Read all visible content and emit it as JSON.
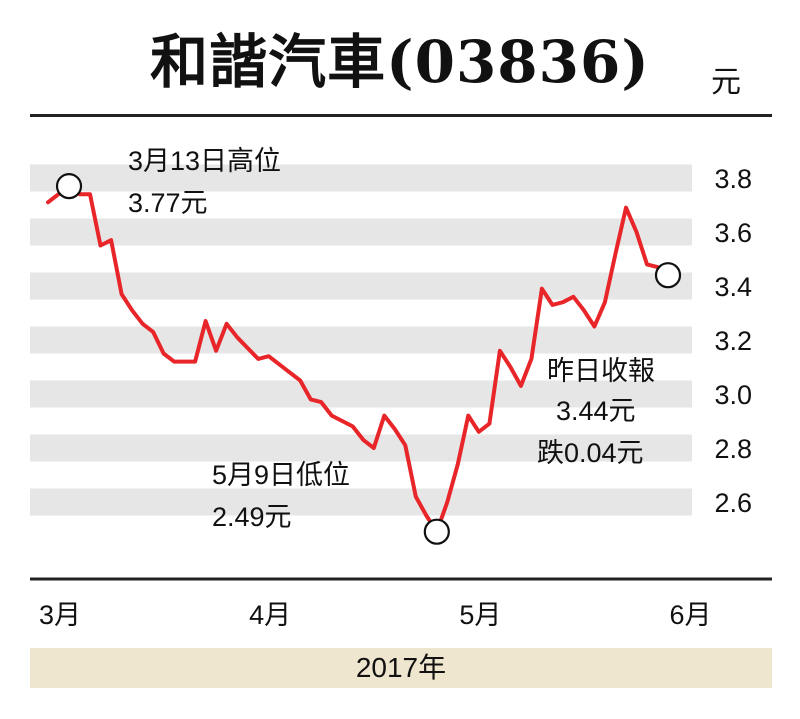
{
  "title": "和諧汽車(03836)",
  "unit": "元",
  "year_label": "2017年",
  "colors": {
    "line": "#e8262a",
    "band": "#e6e6e6",
    "year_band": "#efe6cf"
  },
  "annotations": {
    "high_line1": "3月13日高位",
    "high_line2": "3.77元",
    "low_line1": "5月9日低位",
    "low_line2": "2.49元",
    "close_line1": "昨日收報",
    "close_line2": "3.44元",
    "close_line3": "跌0.04元"
  },
  "chart_data": {
    "type": "line",
    "title": "和諧汽車(03836)",
    "ylabel": "元",
    "xlabel": "2017年",
    "ylim": [
      2.4,
      3.95
    ],
    "yticks": [
      2.6,
      2.8,
      3.0,
      3.2,
      3.4,
      3.6,
      3.8
    ],
    "ytick_labels": [
      "2.6",
      "2.8",
      "3.0",
      "3.2",
      "3.4",
      "3.6",
      "3.8"
    ],
    "x_tick_labels": [
      {
        "label": "3月",
        "idx": 0
      },
      {
        "label": "4月",
        "idx": 20
      },
      {
        "label": "5月",
        "idx": 40
      },
      {
        "label": "6月",
        "idx": 60
      }
    ],
    "series": [
      {
        "values": [
          3.71,
          3.74,
          3.77,
          3.74,
          3.74,
          3.55,
          3.57,
          3.37,
          3.31,
          3.26,
          3.23,
          3.15,
          3.12,
          3.12,
          3.12,
          3.27,
          3.16,
          3.26,
          3.21,
          3.17,
          3.13,
          3.14,
          3.11,
          3.08,
          3.05,
          2.98,
          2.97,
          2.92,
          2.9,
          2.88,
          2.83,
          2.8,
          2.92,
          2.87,
          2.81,
          2.62,
          2.55,
          2.49,
          2.6,
          2.74,
          2.92,
          2.86,
          2.89,
          3.16,
          3.1,
          3.03,
          3.13,
          3.39,
          3.33,
          3.34,
          3.36,
          3.31,
          3.25,
          3.34,
          3.52,
          3.69,
          3.6,
          3.48,
          3.47,
          3.44
        ]
      }
    ],
    "markers": [
      {
        "idx": 2,
        "value": 3.77,
        "label": "高位"
      },
      {
        "idx": 37,
        "value": 2.49,
        "label": "低位"
      },
      {
        "idx": 59,
        "value": 3.44,
        "label": "昨日收報"
      }
    ],
    "grid": "alternating horizontal bands"
  }
}
